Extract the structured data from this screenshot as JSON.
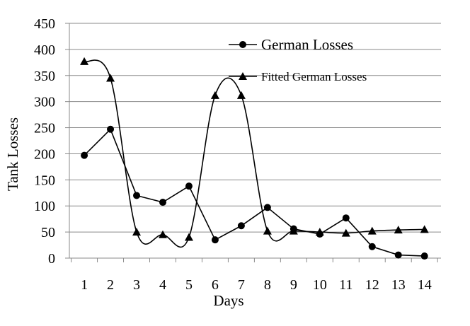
{
  "chart_data": {
    "type": "line",
    "title": "",
    "xlabel": "Days",
    "ylabel": "Tank Losses",
    "categories": [
      "1",
      "2",
      "3",
      "4",
      "5",
      "6",
      "7",
      "8",
      "9",
      "10",
      "11",
      "12",
      "13",
      "14"
    ],
    "ylim": [
      0,
      450
    ],
    "yticks": [
      "0",
      "50",
      "100",
      "150",
      "200",
      "250",
      "300",
      "350",
      "400",
      "450"
    ],
    "grid": "horizontal",
    "legend": "top-right",
    "series": [
      {
        "name": "German Losses",
        "marker": "circle",
        "smooth": false,
        "values": [
          197,
          247,
          120,
          107,
          138,
          35,
          62,
          97,
          56,
          46,
          77,
          22,
          6,
          4
        ]
      },
      {
        "name": "Fitted German Losses",
        "marker": "triangle",
        "smooth": true,
        "values": [
          377,
          345,
          50,
          45,
          40,
          312,
          312,
          52,
          52,
          50,
          48,
          52,
          54,
          55
        ]
      }
    ]
  }
}
